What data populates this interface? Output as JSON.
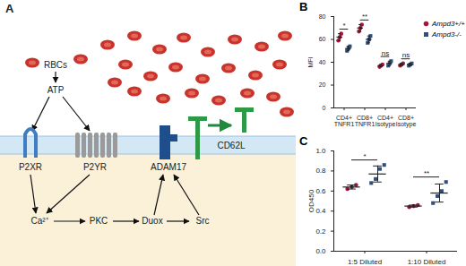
{
  "diagram": {
    "label": "A",
    "cells": "RBCs",
    "molecule": "ATP",
    "receptors": [
      "P2XR",
      "P2YR",
      "ADAM17",
      "CD62L"
    ],
    "pathway": [
      "Ca²⁺",
      "PKC",
      "Duox",
      "Src"
    ]
  },
  "chart_data": [
    {
      "type": "scatter",
      "title": "B",
      "ylabel": "MFI",
      "categories": [
        "CD4+ TNFR1",
        "CD8+ TNFR1",
        "CD4+ Isotype",
        "CD8+ Isotype"
      ],
      "ylim": [
        0,
        80
      ],
      "yticks": [
        0,
        20,
        40,
        60,
        80
      ],
      "legend": "right",
      "annotations": [
        "*",
        "**",
        "ns",
        "ns"
      ],
      "series": [
        {
          "name": "Ampd3+/+",
          "color": "#a3173c",
          "marker": "circle",
          "values": [
            62,
            70,
            37,
            38
          ],
          "error": [
            3,
            3,
            1,
            1
          ],
          "points": [
            [
              59,
              62,
              65
            ],
            [
              67,
              70,
              73
            ],
            [
              36,
              37,
              38
            ],
            [
              37,
              38,
              39
            ]
          ]
        },
        {
          "name": "Ampd3-/-",
          "color": "#2f4f80",
          "marker": "square",
          "values": [
            52,
            60,
            39,
            38
          ],
          "error": [
            2,
            3,
            2,
            1
          ],
          "points": [
            [
              50,
              52,
              54
            ],
            [
              57,
              60,
              63
            ],
            [
              37,
              39,
              41
            ],
            [
              37,
              38,
              39
            ]
          ]
        }
      ]
    },
    {
      "type": "scatter",
      "title": "C",
      "ylabel": "OD450",
      "categories": [
        "1:5 Diluted",
        "1:10 Diluted"
      ],
      "ylim": [
        0,
        1
      ],
      "yticks": [
        {
          "value": 0,
          "label": "0.0"
        },
        0.2,
        0.4,
        0.6,
        0.8,
        {
          "value": 1,
          "label": "1.0"
        }
      ],
      "annotations": [
        "*",
        "**"
      ],
      "series": [
        {
          "name": "Ampd3+/+",
          "color": "#a3173c",
          "marker": "circle",
          "values": [
            0.64,
            0.45
          ],
          "error": [
            0.02,
            0.01
          ],
          "points": [
            [
              0.62,
              0.64,
              0.66
            ],
            [
              0.44,
              0.45,
              0.46
            ]
          ]
        },
        {
          "name": "Ampd3-/-",
          "color": "#2f4f80",
          "marker": "square",
          "values": [
            0.77,
            0.58
          ],
          "error": [
            0.08,
            0.09
          ],
          "points": [
            [
              0.68,
              0.72,
              0.82,
              0.86
            ],
            [
              0.48,
              0.55,
              0.6,
              0.69
            ]
          ]
        }
      ]
    }
  ]
}
